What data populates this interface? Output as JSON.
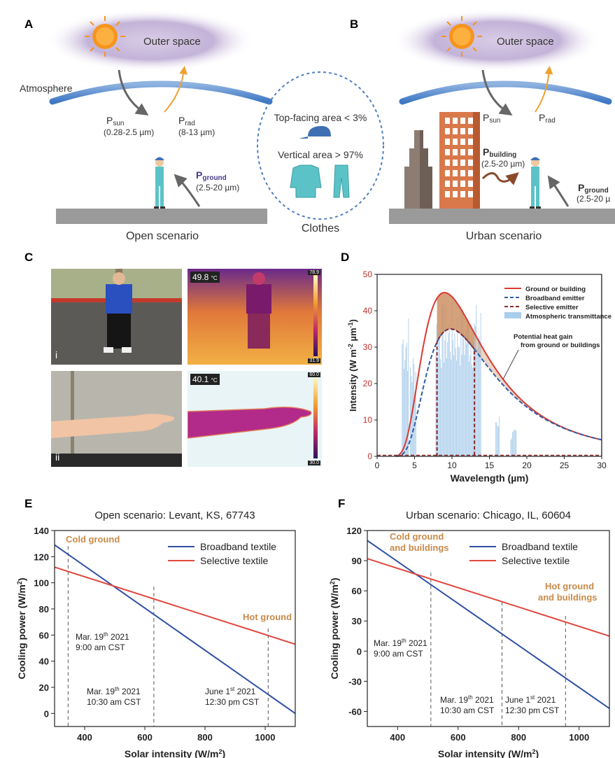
{
  "panels": {
    "a": "A",
    "b": "B",
    "c": "C",
    "d": "D",
    "e": "E",
    "f": "F"
  },
  "panel_ab": {
    "outer_space": "Outer space",
    "atmosphere": "Atmosphere",
    "p_sun": "P",
    "p_sun_sub": "sun",
    "p_sun_range": "(0.28-2.5 µm)",
    "p_rad": "P",
    "p_rad_sub": "rad",
    "p_rad_range": "(8-13 µm)",
    "p_ground": "P",
    "p_ground_sub": "ground",
    "p_ground_range": "(2.5-20 µm)",
    "p_building": "P",
    "p_building_sub": "building",
    "p_building_range": "(2.5-20 µm)",
    "p_ground_b_range": "(2.5-20 µ",
    "open_scenario": "Open scenario",
    "urban_scenario": "Urban scenario",
    "clothes": "Clothes",
    "top_facing": "Top-facing area < 3%",
    "vertical": "Vertical area > 97%"
  },
  "panel_c": {
    "i_label": "i",
    "ii_label": "ii",
    "temp_i": "49.8",
    "temp_ii": "40.1",
    "unit": "°C",
    "scale_i_max": "78.9",
    "scale_i_min": "31.9",
    "scale_ii_max": "60.0",
    "scale_ii_min": "30.0"
  },
  "chart_data": [
    {
      "id": "D",
      "type": "line",
      "xlabel": "Wavelength (µm)",
      "ylabel": "Intensity (W m-2 µm-1)",
      "ylabel_base": "Intensity (W m",
      "ylabel_sup1": "-2",
      "ylabel_mid": " µm",
      "ylabel_sup2": "-1",
      "ylabel_end": ")",
      "xlim": [
        0,
        30
      ],
      "ylim": [
        0,
        50
      ],
      "x_ticks": [
        0,
        5,
        10,
        15,
        20,
        25,
        30
      ],
      "y_ticks": [
        0,
        10,
        20,
        30,
        40,
        50
      ],
      "legend": [
        "Ground or building",
        "Broadband emitter",
        "Selective emitter",
        "Atmospheric transmittance"
      ],
      "annotation": [
        "Potential heat gain",
        "from ground or buildings"
      ],
      "series": [
        {
          "name": "Ground or building",
          "color": "#d93a32",
          "peak_x": 9.0,
          "peak_y": 45.0,
          "tail_y_at_30": 4.8
        },
        {
          "name": "Broadband emitter",
          "color": "#2f5ea8",
          "peak_x": 9.8,
          "peak_y": 35.0,
          "tail_y_at_30": 4.2
        },
        {
          "name": "Selective emitter",
          "color": "#8b2a2a",
          "window": [
            8,
            13
          ]
        }
      ]
    },
    {
      "id": "E",
      "type": "line",
      "title": "Open scenario: Levant, KS, 67743",
      "xlabel": "Solar intensity (W/m2)",
      "xlabel_base": "Solar intensity (W/m",
      "xlabel_sup": "2",
      "xlabel_end": ")",
      "ylabel_base": "Cooling power (W/m",
      "ylabel_sup": "2",
      "ylabel_end": ")",
      "xlim": [
        300,
        1100
      ],
      "ylim": [
        -10,
        140
      ],
      "x_ticks": [
        400,
        600,
        800,
        1000
      ],
      "y_ticks": [
        0,
        20,
        40,
        60,
        80,
        100,
        120,
        140
      ],
      "series": [
        {
          "name": "Broadband textile",
          "color": "#2f4fa3",
          "x": [
            300,
            1100
          ],
          "y": [
            129,
            0
          ]
        },
        {
          "name": "Selective textile",
          "color": "#e0473e",
          "x": [
            300,
            1100
          ],
          "y": [
            112,
            53
          ]
        }
      ],
      "vlines": [
        {
          "x": 345,
          "y_top": 128
        },
        {
          "x": 630,
          "y_top": 97
        },
        {
          "x": 1010,
          "y_top": 65
        }
      ],
      "notes": {
        "cold": "Cold ground",
        "hot": "Hot ground",
        "t1_a": "Mar. 19",
        "t1_sup": "th",
        "t1_b": " 2021",
        "t1_time": "9:00 am CST",
        "t2_a": "Mar. 19",
        "t2_sup": "th",
        "t2_b": " 2021",
        "t2_time": "10:30 am CST",
        "t3_a": "June 1",
        "t3_sup": "st",
        "t3_b": " 2021",
        "t3_time": "12:30 pm CST"
      }
    },
    {
      "id": "F",
      "type": "line",
      "title": "Urban scenario: Chicago, IL, 60604",
      "xlabel": "Solar intensity (W/m2)",
      "xlabel_base": "Solar intensity (W/m",
      "xlabel_sup": "2",
      "xlabel_end": ")",
      "ylabel_base": "Cooling power (W/m",
      "ylabel_sup": "2",
      "ylabel_end": ")",
      "xlim": [
        300,
        1100
      ],
      "ylim": [
        -75,
        120
      ],
      "x_ticks": [
        400,
        600,
        800,
        1000
      ],
      "y_ticks": [
        -60,
        -30,
        0,
        30,
        60,
        90,
        120
      ],
      "series": [
        {
          "name": "Broadband textile",
          "color": "#2f4fa3",
          "x": [
            300,
            1100
          ],
          "y": [
            110,
            -57
          ]
        },
        {
          "name": "Selective textile",
          "color": "#e0473e",
          "x": [
            300,
            1100
          ],
          "y": [
            92,
            15
          ]
        }
      ],
      "vlines": [
        {
          "x": 510,
          "y_top": 78
        },
        {
          "x": 745,
          "y_top": 49
        },
        {
          "x": 955,
          "y_top": 35
        }
      ],
      "notes": {
        "cold1": "Cold ground",
        "cold2": "and buildings",
        "hot1": "Hot ground",
        "hot2": "and buildings",
        "t1_a": "Mar. 19",
        "t1_sup": "th",
        "t1_b": " 2021",
        "t1_time": "9:00 am CST",
        "t2_a": "Mar. 19",
        "t2_sup": "th",
        "t2_b": " 2021",
        "t2_time": "10:30 am CST",
        "t3_a": "June 1",
        "t3_sup": "st",
        "t3_b": " 2021",
        "t3_time": "12:30 pm CST"
      }
    }
  ]
}
